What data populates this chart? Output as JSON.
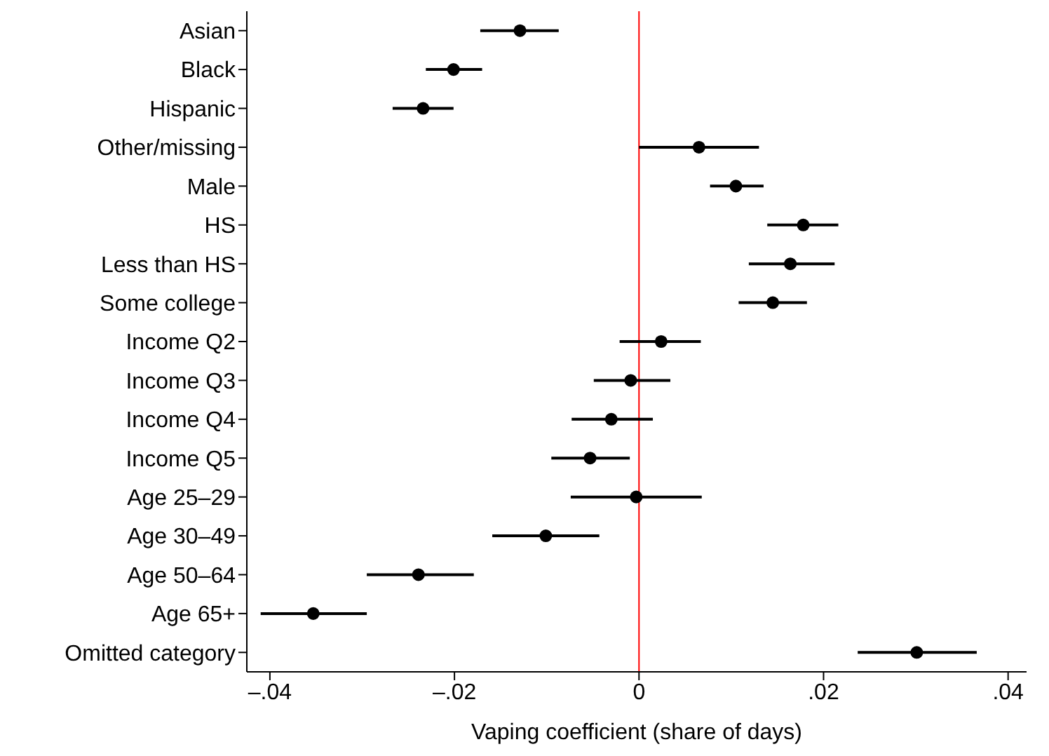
{
  "chart_data": {
    "type": "scatter",
    "orientation": "horizontal",
    "xlabel": "Vaping coefficient (share of days)",
    "categories": [
      "Asian",
      "Black",
      "Hispanic",
      "Other/missing",
      "Male",
      "HS",
      "Less than HS",
      "Some college",
      "Income Q2",
      "Income Q3",
      "Income Q4",
      "Income Q5",
      "Age 25–29",
      "Age 30–49",
      "Age 50–64",
      "Age 65+",
      "Omitted category"
    ],
    "values": [
      -0.0129,
      -0.0201,
      -0.0234,
      0.0065,
      0.0105,
      0.0178,
      0.0164,
      0.0145,
      0.0024,
      -0.0009,
      -0.003,
      -0.0053,
      -0.0003,
      -0.0101,
      -0.0239,
      -0.0353,
      0.0301
    ],
    "errors": [
      [
        -0.0172,
        -0.0087
      ],
      [
        -0.0231,
        -0.017
      ],
      [
        -0.0267,
        -0.0201
      ],
      [
        0,
        0.013
      ],
      [
        0.0077,
        0.0135
      ],
      [
        0.0139,
        0.0216
      ],
      [
        0.0119,
        0.0212
      ],
      [
        0.0108,
        0.0182
      ],
      [
        -0.0021,
        0.0067
      ],
      [
        -0.0049,
        0.0034
      ],
      [
        -0.0073,
        0.0015
      ],
      [
        -0.0095,
        -0.001
      ],
      [
        -0.0074,
        0.0068
      ],
      [
        -0.0159,
        -0.0043
      ],
      [
        -0.0295,
        -0.0179
      ],
      [
        -0.041,
        -0.0295
      ],
      [
        0.0237,
        0.0366
      ]
    ],
    "color": "#000000",
    "marker": "circle",
    "xlim": [
      -0.0425,
      0.042
    ],
    "xticks": [
      {
        "value": -0.04,
        "label": "–.04"
      },
      {
        "value": -0.02,
        "label": "–.02"
      },
      0,
      {
        "value": 0.02,
        "label": ".02"
      },
      {
        "value": 0.04,
        "label": ".04"
      }
    ],
    "ref_lines": [
      {
        "axis": "x",
        "value": 0,
        "color": "#ff0000"
      }
    ],
    "grid": false
  }
}
